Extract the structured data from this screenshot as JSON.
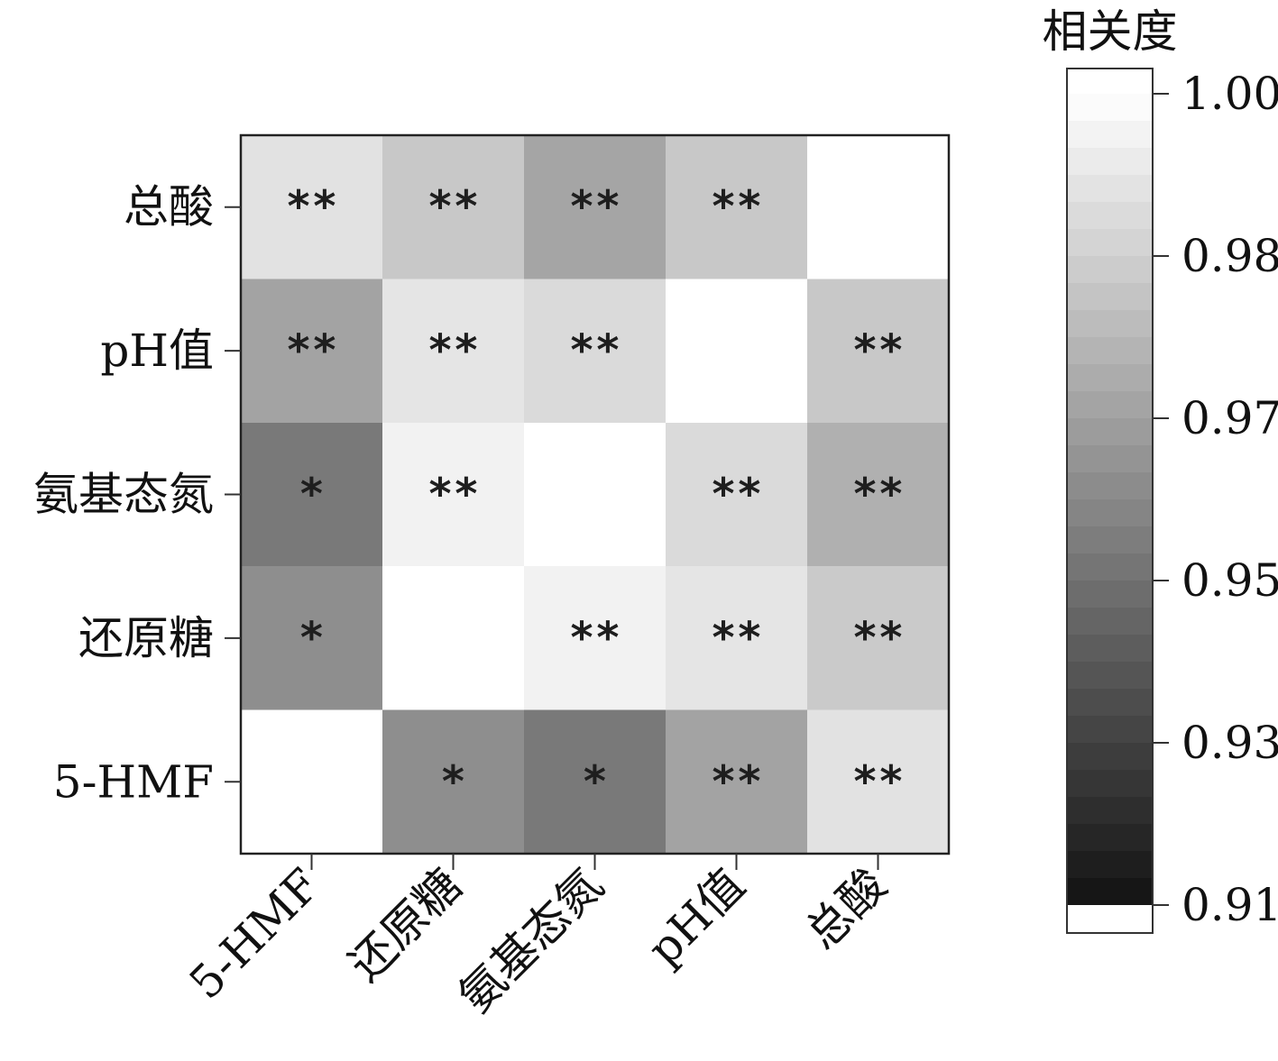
{
  "chart_data": {
    "type": "heatmap",
    "rows": [
      "总酸",
      "pH值",
      "氨基态氮",
      "还原糖",
      "5-HMF"
    ],
    "columns": [
      "5-HMF",
      "还原糖",
      "氨基态氮",
      "pH值",
      "总酸"
    ],
    "values": [
      [
        0.989,
        0.979,
        0.966,
        0.979,
        1.0
      ],
      [
        0.965,
        0.99,
        0.986,
        1.0,
        0.979
      ],
      [
        0.949,
        0.995,
        1.0,
        0.986,
        0.97
      ],
      [
        0.957,
        1.0,
        0.995,
        0.99,
        0.98
      ],
      [
        1.0,
        0.957,
        0.949,
        0.965,
        0.989
      ]
    ],
    "significance": [
      [
        "**",
        "**",
        "**",
        "**",
        ""
      ],
      [
        "**",
        "**",
        "**",
        "",
        "**"
      ],
      [
        "*",
        "**",
        "",
        "**",
        "**"
      ],
      [
        "*",
        "",
        "**",
        "**",
        "**"
      ],
      [
        "",
        "*",
        "*",
        "**",
        "**"
      ]
    ],
    "colorbar": {
      "title": "相关度",
      "range": [
        0.91,
        1.0
      ],
      "ticks": [
        1.0,
        0.98,
        0.97,
        0.95,
        0.93,
        0.91
      ],
      "tick_labels": [
        "1.00",
        "0.98",
        "0.97",
        "0.95",
        "0.93",
        "0.91"
      ],
      "steps": 30,
      "colormap": "grayscale (black = 0.91, white = 1.00)"
    },
    "legend_position": "right",
    "grid": false
  }
}
